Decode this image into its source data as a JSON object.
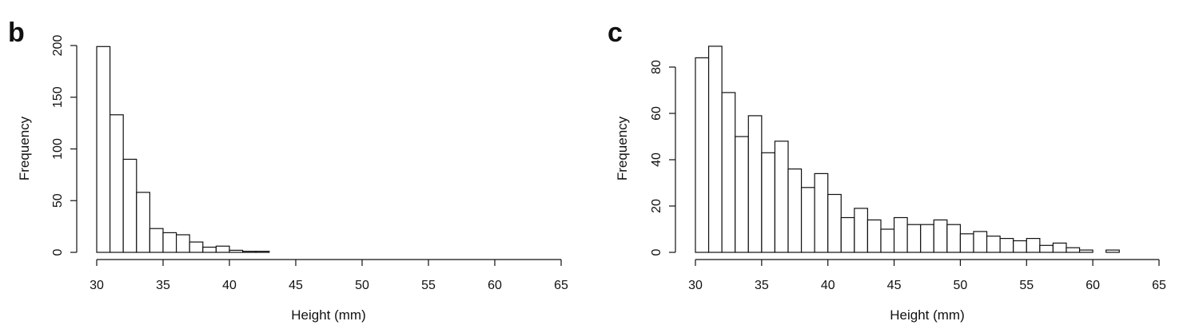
{
  "chart_data": [
    {
      "panel": "b",
      "type": "bar",
      "xlabel": "Height (mm)",
      "ylabel": "Frequency",
      "xlim": [
        30,
        65
      ],
      "ylim": [
        0,
        200
      ],
      "xticks": [
        30,
        35,
        40,
        45,
        50,
        55,
        60,
        65
      ],
      "yticks": [
        0,
        50,
        100,
        150,
        200
      ],
      "bin_width": 1,
      "bin_starts": [
        30,
        31,
        32,
        33,
        34,
        35,
        36,
        37,
        38,
        39,
        40,
        41,
        42
      ],
      "values": [
        199,
        133,
        90,
        58,
        23,
        19,
        17,
        10,
        5,
        6,
        2,
        1,
        1
      ],
      "grid": false,
      "legend": "none"
    },
    {
      "panel": "c",
      "type": "bar",
      "xlabel": "Height (mm)",
      "ylabel": "Frequency",
      "xlim": [
        30,
        65
      ],
      "ylim": [
        0,
        80
      ],
      "xticks": [
        30,
        35,
        40,
        45,
        50,
        55,
        60,
        65
      ],
      "yticks": [
        0,
        20,
        40,
        60,
        80
      ],
      "bin_width": 1,
      "bin_starts": [
        30,
        31,
        32,
        33,
        34,
        35,
        36,
        37,
        38,
        39,
        40,
        41,
        42,
        43,
        44,
        45,
        46,
        47,
        48,
        49,
        50,
        51,
        52,
        53,
        54,
        55,
        56,
        57,
        58,
        59,
        60,
        61
      ],
      "values": [
        84,
        89,
        69,
        50,
        59,
        43,
        48,
        36,
        28,
        34,
        25,
        15,
        19,
        14,
        10,
        15,
        12,
        12,
        14,
        12,
        8,
        9,
        7,
        6,
        5,
        6,
        3,
        4,
        2,
        1,
        0,
        1
      ],
      "grid": false,
      "legend": "none"
    }
  ]
}
